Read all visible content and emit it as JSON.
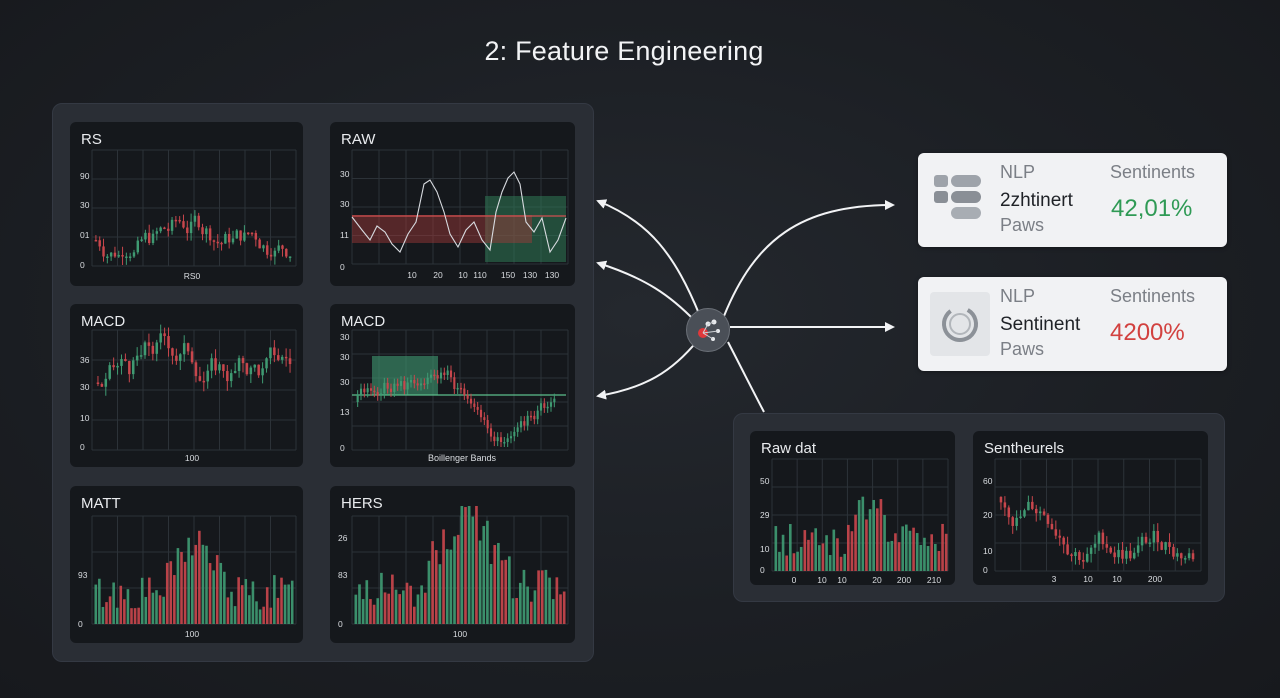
{
  "title": "2: Feature Engineering",
  "colors": {
    "up": "#3f9a72",
    "down": "#c8464c",
    "grid": "#2c3238",
    "line": "#d7dadf",
    "pos_value": "#2f9a55",
    "neg_value": "#d2413f"
  },
  "panels": {
    "rs": {
      "title": "RS",
      "yticks": [
        "90",
        "30",
        "01",
        "0"
      ],
      "xlabel": "RS0"
    },
    "raw": {
      "title": "RAW",
      "yticks": [
        "30",
        "30",
        "11",
        "0"
      ],
      "xticks": [
        "10",
        "20",
        "10",
        "110",
        "150",
        "130",
        "130"
      ]
    },
    "macd1": {
      "title": "MACD",
      "yticks": [
        "36",
        "30",
        "10",
        "0"
      ],
      "xlabel": "100"
    },
    "macd2": {
      "title": "MACD",
      "yticks": [
        "30",
        "30",
        "30",
        "13",
        "0"
      ],
      "xlabel": "Boillenger Bands"
    },
    "matt": {
      "title": "MATT",
      "yticks": [
        "93",
        "0"
      ],
      "xlabel": "100"
    },
    "hers": {
      "title": "HERS",
      "yticks": [
        "26",
        "83",
        "0"
      ],
      "xlabel": "100"
    },
    "rawdat": {
      "title": "Raw dat",
      "yticks": [
        "50",
        "29",
        "10",
        "0"
      ],
      "xticks": [
        "0",
        "10",
        "10",
        "20",
        "200",
        "210"
      ]
    },
    "sentheurels": {
      "title": "Sentheurels",
      "yticks": [
        "60",
        "20",
        "10",
        "0"
      ],
      "xticks": [
        "3",
        "10",
        "10",
        "200"
      ]
    }
  },
  "cards": [
    {
      "label": "NLP",
      "name": "2zhtinert",
      "sub": "Paws",
      "metric_label": "Sentinents",
      "value": "42,01%",
      "value_color": "#2f9a55",
      "icon": "server-stack-icon"
    },
    {
      "label": "NLP",
      "name": "Sentinent",
      "sub": "Paws",
      "metric_label": "Sentinents",
      "value": "4200%",
      "value_color": "#d2413f",
      "icon": "refresh-ring-icon"
    }
  ],
  "hub_icon": "network-hub-icon"
}
